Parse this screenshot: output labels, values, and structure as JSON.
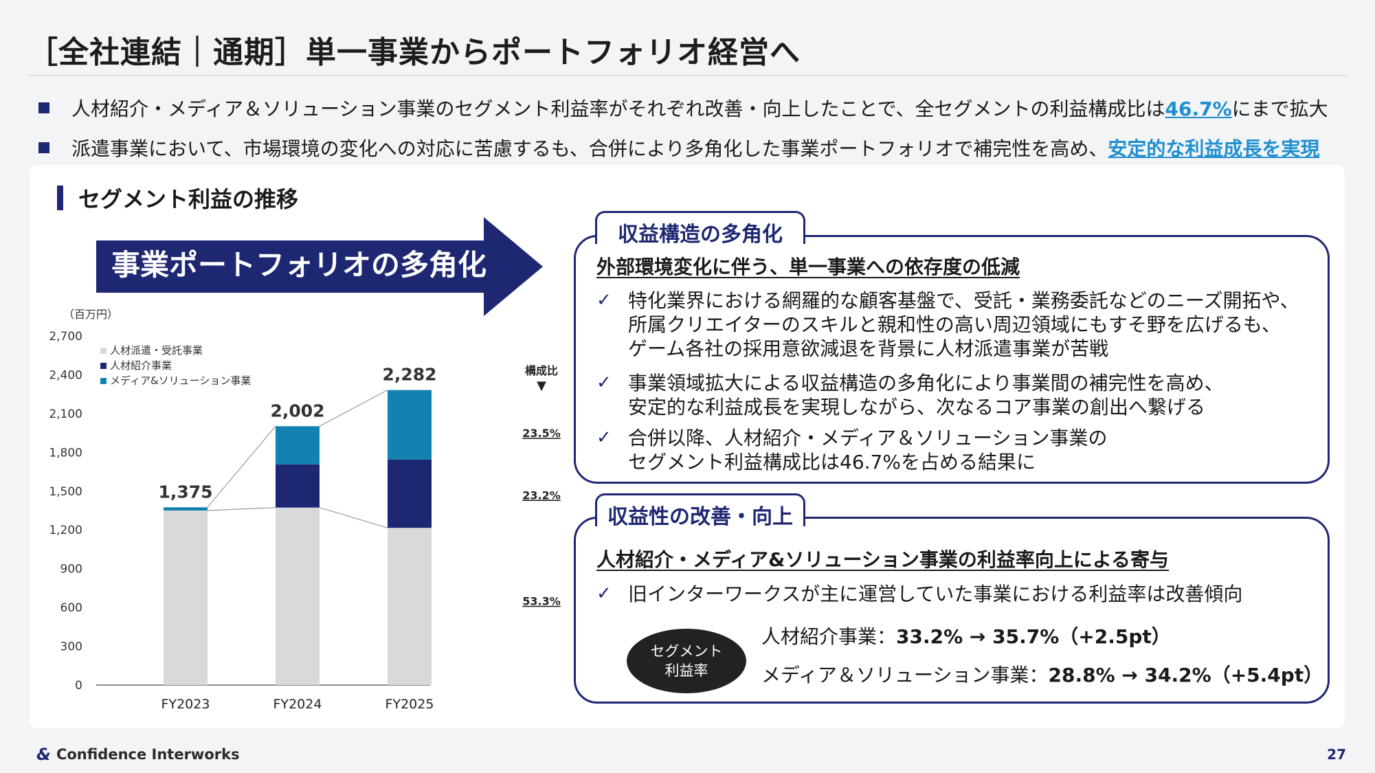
{
  "title": "［全社連結｜通期］単一事業からポートフォリオ経営へ",
  "bullets": [
    {
      "pre": "人材紹介・メディア＆ソリューション事業のセグメント利益率がそれぞれ改善・向上したことで、全セグメントの利益構成比は",
      "hl": "46.7%",
      "post": "にまで拡大"
    },
    {
      "pre": "派遣事業において、市場環境の変化への対応に苦慮するも、合併により多角化した事業ポートフォリオで補完性を高め、",
      "hl": "安定的な利益成長を実現",
      "post": ""
    }
  ],
  "section_title": "セグメント利益の推移",
  "arrow_label": "事業ポートフォリオの多角化",
  "colors": {
    "navy": "#1e2772",
    "teal": "#1482b1",
    "gray": "#d9d9db",
    "accent": "#1f8fd0"
  },
  "chart_data": {
    "type": "bar",
    "stacked": true,
    "unit": "（百万円）",
    "categories": [
      "FY2023",
      "FY2024",
      "FY2025"
    ],
    "series": [
      {
        "name": "人材派遣・受託事業",
        "values": [
          1350,
          1373,
          1216
        ],
        "color": "#d9d9db"
      },
      {
        "name": "人材紹介事業",
        "values": [
          0,
          334,
          529
        ],
        "color": "#1e2772"
      },
      {
        "name": "メディア&ソリューション事業",
        "values": [
          25,
          295,
          537
        ],
        "color": "#1482b1"
      }
    ],
    "totals": [
      "1,375",
      "2,002",
      "2,282"
    ],
    "total_values": [
      1375,
      2002,
      2282
    ],
    "yticks": [
      "0",
      "300",
      "600",
      "900",
      "1,200",
      "1,500",
      "1,800",
      "2,100",
      "2,400",
      "2,700"
    ],
    "ylim": [
      0,
      2700
    ],
    "composition_label": "構成比",
    "composition_marker": "▼",
    "composition": [
      {
        "label": "23.5%",
        "y": 1950
      },
      {
        "label": "23.2%",
        "y": 1470
      },
      {
        "label": "53.3%",
        "y": 650
      }
    ],
    "legend_position": "top-left"
  },
  "box1": {
    "badge": "収益構造の多角化",
    "heading": "外部環境変化に伴う、単一事業への依存度の低減",
    "items": [
      [
        "特化業界における網羅的な顧客基盤で、受託・業務委託などのニーズ開拓や、",
        "所属クリエイターのスキルと親和性の高い周辺領域にもすそ野を広げるも、",
        "ゲーム各社の採用意欲減退を背景に人材派遣事業が苦戦"
      ],
      [
        "事業領域拡大による収益構造の多角化により事業間の補完性を高め、",
        "安定的な利益成長を実現しながら、次なるコア事業の創出へ繋げる"
      ],
      [
        "合併以降、人材紹介・メディア＆ソリューション事業の",
        "セグメント利益構成比は46.7%を占める結果に"
      ]
    ]
  },
  "box2": {
    "badge": "収益性の改善・向上",
    "heading": "人材紹介・メディア&ソリューション事業の利益率向上による寄与",
    "item": "旧インターワークスが主に運営していた事業における利益率は改善傾向",
    "oval": [
      "セグメント",
      "利益率"
    ],
    "rate1": {
      "label": "人材紹介事業：",
      "value": "33.2% → 35.7%（+2.5pt）"
    },
    "rate2": {
      "label": "メディア＆ソリューション事業：",
      "value": "28.8% →  34.2%（+5.4pt）"
    }
  },
  "check_mark": "✓",
  "footer": {
    "logo_mark": "&",
    "company": "Confidence Interworks",
    "page": "27"
  }
}
